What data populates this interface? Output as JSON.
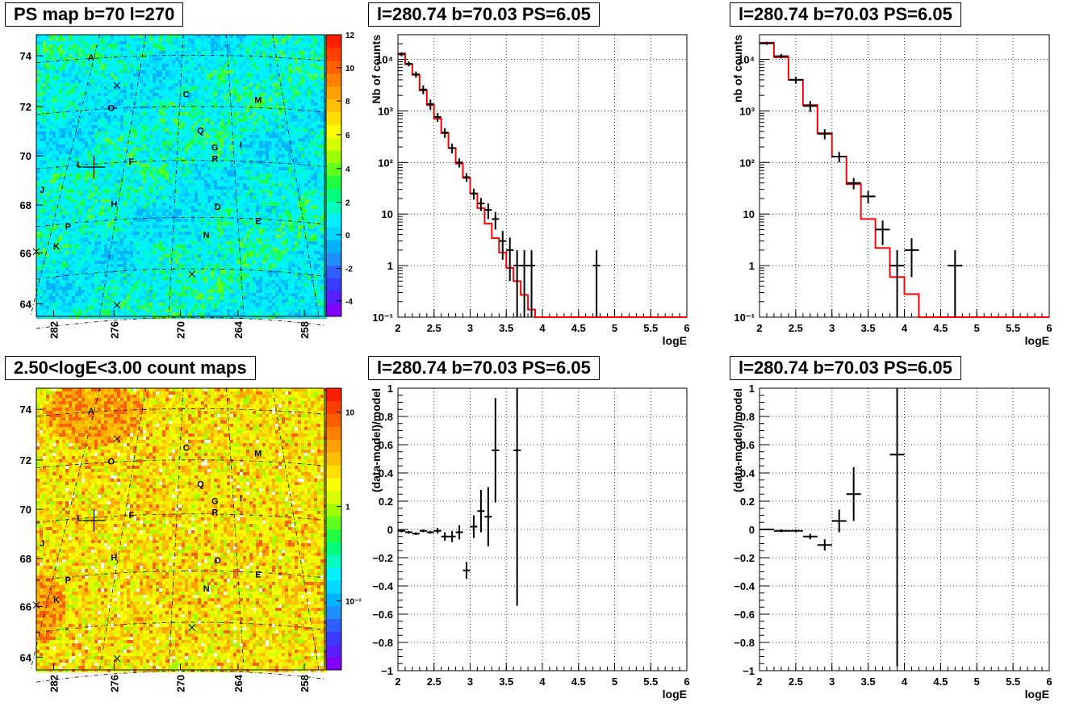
{
  "colors": {
    "model_line": "#ff0000",
    "data_marker": "#000000",
    "grid": "#000000"
  },
  "panels": {
    "ps_map": {
      "title": "PS map b=70 l=270"
    },
    "count_map": {
      "title": "2.50<logE<3.00 count maps"
    },
    "spectrum_a": {
      "title": "l=280.74 b=70.03 PS=6.05"
    },
    "spectrum_b": {
      "title": "l=280.74 b=70.03 PS=6.05"
    },
    "residual_a": {
      "title": "l=280.74 b=70.03 PS=6.05"
    },
    "residual_b": {
      "title": "l=280.74 b=70.03 PS=6.05"
    }
  },
  "chart_data": [
    {
      "id": "ps_map",
      "type": "heatmap",
      "title": "PS map b=70 l=270",
      "xlabel": "",
      "ylabel": "",
      "x_ticks": [
        "282",
        "276",
        "270",
        "264",
        "258"
      ],
      "y_ticks": [
        "64",
        "66",
        "68",
        "70",
        "72",
        "74"
      ],
      "colorbar": {
        "scale": "linear",
        "range": [
          -5,
          12
        ],
        "ticks": [
          "-4",
          "-2",
          "0",
          "2",
          "4",
          "6",
          "8",
          "10",
          "12"
        ]
      },
      "markers": [
        "A",
        "C",
        "M",
        "O",
        "Q",
        "G",
        "I",
        "R",
        "F",
        "L",
        "J",
        "H",
        "D",
        "E",
        "P",
        "N",
        "K"
      ]
    },
    {
      "id": "count_map",
      "type": "heatmap",
      "title": "2.50<logE<3.00 count maps",
      "xlabel": "",
      "ylabel": "",
      "x_ticks": [
        "282",
        "276",
        "270",
        "264",
        "258"
      ],
      "y_ticks": [
        "64",
        "66",
        "68",
        "70",
        "72",
        "74"
      ],
      "colorbar": {
        "scale": "log",
        "ticks": [
          "10",
          "1",
          "10⁻¹"
        ]
      },
      "markers": [
        "A",
        "C",
        "M",
        "O",
        "Q",
        "G",
        "I",
        "R",
        "F",
        "L",
        "J",
        "H",
        "D",
        "E",
        "P",
        "N",
        "K"
      ]
    },
    {
      "id": "spectrum_a",
      "type": "line",
      "title": "l=280.74 b=70.03 PS=6.05",
      "xlabel": "logE",
      "ylabel": "Nb of counts",
      "xlim": [
        2,
        6
      ],
      "ylim": [
        0.1,
        30000
      ],
      "yscale": "log",
      "grid": true,
      "x_ticks": [
        "2",
        "2.5",
        "3",
        "3.5",
        "4",
        "4.5",
        "5",
        "5.5",
        "6"
      ],
      "y_ticks": [
        "10⁻¹",
        "1",
        "10",
        "10²",
        "10³",
        "10⁴"
      ],
      "series": [
        {
          "name": "",
          "kind": "model_step",
          "bin_width": 0.1,
          "x": [
            2.0,
            2.1,
            2.2,
            2.3,
            2.4,
            2.5,
            2.6,
            2.7,
            2.8,
            2.9,
            3.0,
            3.1,
            3.2,
            3.3,
            3.4,
            3.5,
            3.6,
            3.7,
            3.8,
            3.9,
            4.0,
            4.1,
            4.2,
            4.3,
            4.4,
            4.5,
            4.6,
            4.7,
            4.8,
            4.9,
            5.0,
            5.1,
            5.2,
            5.3,
            5.4,
            5.5,
            5.6,
            5.7,
            5.8,
            5.9
          ],
          "values": [
            13000,
            8000,
            5000,
            2500,
            1300,
            700,
            370,
            190,
            95,
            50,
            25,
            13,
            6.5,
            3.4,
            1.8,
            0.9,
            0.5,
            0.27,
            0.14,
            0.1,
            0.1,
            0.1,
            0.1,
            0.1,
            0.1,
            0.1,
            0.1,
            0.1,
            0.1,
            0.1,
            0.1,
            0.1,
            0.1,
            0.1,
            0.1,
            0.1,
            0.1,
            0.1,
            0.1,
            0.1
          ]
        },
        {
          "name": "",
          "kind": "data_points",
          "x_halfwidth": 0.05,
          "points": [
            [
              2.05,
              12500,
              1100
            ],
            [
              2.15,
              8200,
              900
            ],
            [
              2.25,
              5100,
              700
            ],
            [
              2.35,
              2600,
              500
            ],
            [
              2.45,
              1350,
              300
            ],
            [
              2.55,
              760,
              150
            ],
            [
              2.65,
              380,
              80
            ],
            [
              2.75,
              190,
              40
            ],
            [
              2.85,
              100,
              20
            ],
            [
              2.95,
              52,
              10
            ],
            [
              3.05,
              25,
              6
            ],
            [
              3.15,
              16,
              4.5
            ],
            [
              3.25,
              12,
              4
            ],
            [
              3.35,
              8,
              3
            ],
            [
              3.45,
              3,
              1.7
            ],
            [
              3.55,
              2,
              1.5
            ],
            [
              3.65,
              1,
              1
            ],
            [
              3.75,
              1,
              1
            ],
            [
              3.85,
              1,
              1
            ],
            [
              4.75,
              1,
              1
            ]
          ]
        }
      ]
    },
    {
      "id": "spectrum_b",
      "type": "line",
      "title": "l=280.74 b=70.03 PS=6.05",
      "xlabel": "logE",
      "ylabel": "nb of counts",
      "xlim": [
        2,
        6
      ],
      "ylim": [
        0.1,
        30000
      ],
      "yscale": "log",
      "grid": true,
      "x_ticks": [
        "2",
        "2.5",
        "3",
        "3.5",
        "4",
        "4.5",
        "5",
        "5.5",
        "6"
      ],
      "y_ticks": [
        "10⁻¹",
        "1",
        "10",
        "10²",
        "10³",
        "10⁴"
      ],
      "series": [
        {
          "name": "",
          "kind": "model_step",
          "bin_width": 0.2,
          "x": [
            2.0,
            2.2,
            2.4,
            2.6,
            2.8,
            3.0,
            3.2,
            3.4,
            3.6,
            3.8,
            4.0,
            4.2,
            4.4,
            4.6,
            4.8,
            5.0,
            5.2,
            5.4,
            5.6,
            5.8
          ],
          "values": [
            21000,
            11000,
            4000,
            1300,
            370,
            130,
            38,
            8,
            2.2,
            0.6,
            0.28,
            0.1,
            0.1,
            0.1,
            0.1,
            0.1,
            0.1,
            0.1,
            0.1,
            0.1
          ]
        },
        {
          "name": "",
          "kind": "data_points",
          "x_halfwidth": 0.1,
          "points": [
            [
              2.1,
              20500,
              1400
            ],
            [
              2.3,
              11500,
              1100
            ],
            [
              2.5,
              4000,
              600
            ],
            [
              2.7,
              1250,
              300
            ],
            [
              2.9,
              360,
              80
            ],
            [
              3.1,
              130,
              30
            ],
            [
              3.3,
              40,
              10
            ],
            [
              3.5,
              22,
              6
            ],
            [
              3.7,
              5,
              2.5
            ],
            [
              3.9,
              1,
              1
            ],
            [
              4.1,
              2,
              1.4
            ],
            [
              4.7,
              1,
              1
            ]
          ]
        }
      ]
    },
    {
      "id": "residual_a",
      "type": "scatter",
      "title": "l=280.74 b=70.03 PS=6.05",
      "xlabel": "logE",
      "ylabel": "(data-model)/model",
      "xlim": [
        2,
        6
      ],
      "ylim": [
        -1,
        1
      ],
      "grid": true,
      "x_ticks": [
        "2",
        "2.5",
        "3",
        "3.5",
        "4",
        "4.5",
        "5",
        "5.5",
        "6"
      ],
      "y_ticks": [
        "−1",
        "−0.8",
        "−0.6",
        "−0.4",
        "−0.2",
        "0",
        "0.2",
        "0.4",
        "0.6",
        "0.8",
        "1"
      ],
      "series": [
        {
          "name": "",
          "kind": "data_points",
          "x_halfwidth": 0.05,
          "points": [
            [
              2.05,
              -0.01,
              0.01
            ],
            [
              2.15,
              -0.02,
              0.01
            ],
            [
              2.25,
              -0.03,
              0.01
            ],
            [
              2.35,
              -0.01,
              0.01
            ],
            [
              2.45,
              -0.02,
              0.01
            ],
            [
              2.55,
              -0.01,
              0.02
            ],
            [
              2.65,
              -0.05,
              0.03
            ],
            [
              2.75,
              -0.05,
              0.04
            ],
            [
              2.85,
              -0.02,
              0.05
            ],
            [
              2.95,
              -0.29,
              0.06
            ],
            [
              3.05,
              0.02,
              0.08
            ],
            [
              3.15,
              0.13,
              0.15
            ],
            [
              3.25,
              0.09,
              0.21
            ],
            [
              3.35,
              0.56,
              0.37
            ],
            [
              3.65,
              0.56,
              1.1
            ]
          ]
        }
      ]
    },
    {
      "id": "residual_b",
      "type": "scatter",
      "title": "l=280.74 b=70.03 PS=6.05",
      "xlabel": "logE",
      "ylabel": "(data-model)/model",
      "xlim": [
        2,
        6
      ],
      "ylim": [
        -1,
        1
      ],
      "grid": true,
      "x_ticks": [
        "2",
        "2.5",
        "3",
        "3.5",
        "4",
        "4.5",
        "5",
        "5.5",
        "6"
      ],
      "y_ticks": [
        "−1",
        "−0.8",
        "−0.6",
        "−0.4",
        "−0.2",
        "0",
        "0.2",
        "0.4",
        "0.6",
        "0.8",
        "1"
      ],
      "series": [
        {
          "name": "",
          "kind": "data_points",
          "x_halfwidth": 0.1,
          "points": [
            [
              2.1,
              0.0,
              0.005
            ],
            [
              2.3,
              -0.01,
              0.01
            ],
            [
              2.5,
              -0.01,
              0.01
            ],
            [
              2.7,
              -0.05,
              0.02
            ],
            [
              2.9,
              -0.11,
              0.04
            ],
            [
              3.1,
              0.06,
              0.08
            ],
            [
              3.3,
              0.25,
              0.19
            ],
            [
              3.9,
              0.53,
              1.5
            ]
          ]
        }
      ]
    }
  ]
}
